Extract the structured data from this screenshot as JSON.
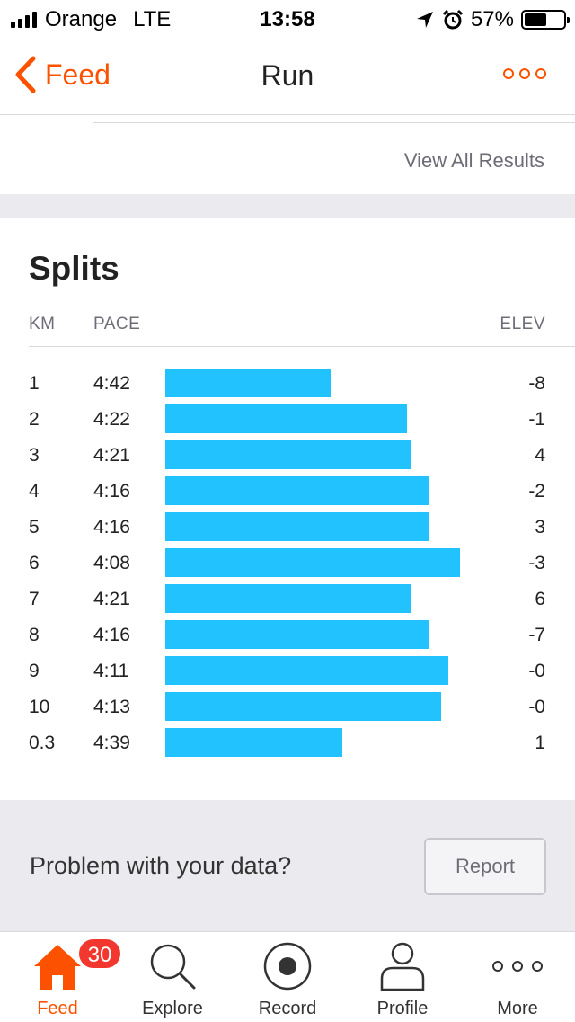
{
  "status_bar": {
    "carrier": "Orange",
    "network": "LTE",
    "time": "13:58",
    "battery": "57%",
    "battery_level": 0.57
  },
  "nav": {
    "back_label": "Feed",
    "title": "Run"
  },
  "results": {
    "view_all_label": "View All Results"
  },
  "splits": {
    "title": "Splits",
    "headers": {
      "km": "KM",
      "pace": "PACE",
      "elev": "ELEV"
    },
    "rows": [
      {
        "km": "1",
        "pace": "4:42",
        "pace_seconds": 282,
        "elev": "-8"
      },
      {
        "km": "2",
        "pace": "4:22",
        "pace_seconds": 262,
        "elev": "-1"
      },
      {
        "km": "3",
        "pace": "4:21",
        "pace_seconds": 261,
        "elev": "4"
      },
      {
        "km": "4",
        "pace": "4:16",
        "pace_seconds": 256,
        "elev": "-2"
      },
      {
        "km": "5",
        "pace": "4:16",
        "pace_seconds": 256,
        "elev": "3"
      },
      {
        "km": "6",
        "pace": "4:08",
        "pace_seconds": 248,
        "elev": "-3"
      },
      {
        "km": "7",
        "pace": "4:21",
        "pace_seconds": 261,
        "elev": "6"
      },
      {
        "km": "8",
        "pace": "4:16",
        "pace_seconds": 256,
        "elev": "-7"
      },
      {
        "km": "9",
        "pace": "4:11",
        "pace_seconds": 251,
        "elev": "-0"
      },
      {
        "km": "10",
        "pace": "4:13",
        "pace_seconds": 253,
        "elev": "-0"
      },
      {
        "km": "0.3",
        "pace": "4:39",
        "pace_seconds": 279,
        "elev": "1"
      }
    ],
    "bar_color": "#22c2ff"
  },
  "problem": {
    "text": "Problem with your data?",
    "report_label": "Report"
  },
  "tabbar": {
    "feed_badge": "30",
    "tabs": [
      {
        "label": "Feed",
        "icon": "home-icon",
        "active": true
      },
      {
        "label": "Explore",
        "icon": "search-icon",
        "active": false
      },
      {
        "label": "Record",
        "icon": "record-icon",
        "active": false
      },
      {
        "label": "Profile",
        "icon": "profile-icon",
        "active": false
      },
      {
        "label": "More",
        "icon": "more-icon",
        "active": false
      }
    ]
  },
  "colors": {
    "accent": "#fc5200",
    "badge": "#f2382e"
  }
}
